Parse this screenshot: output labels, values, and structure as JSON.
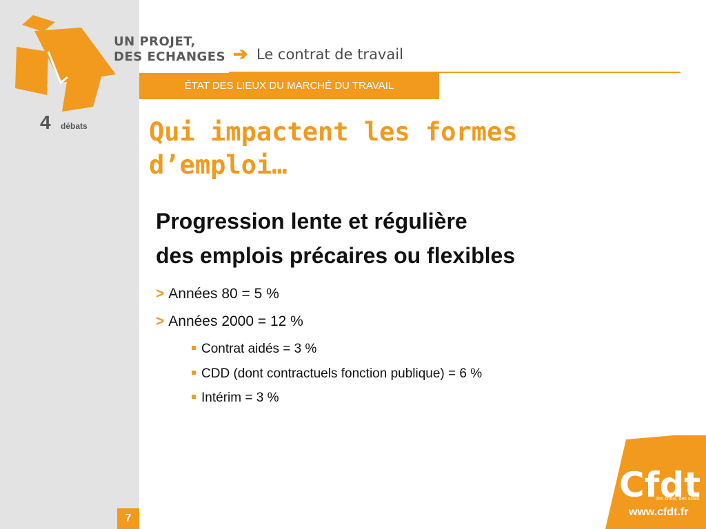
{
  "header": {
    "project_line1": "UN PROJET,",
    "project_line2": "DES ECHANGES",
    "subject": "Le contrat de travail",
    "brand_digit": "4",
    "brand_word": "débats"
  },
  "section_tag": "ÉTAT DES LIEUX DU MARCHÉ DU TRAVAIL",
  "title_line1": "Qui impactent les formes",
  "title_line2": "d’emploi…",
  "headline": {
    "line1": "Progression lente et régulière",
    "line2": "des emplois précaires ou flexibles"
  },
  "bullets": [
    {
      "marker": ">",
      "text": "Années 80 = 5 %"
    },
    {
      "marker": ">",
      "text": "Années 2000 = 12 %"
    }
  ],
  "sub_bullets": [
    {
      "text": "Contrat aidés = 3 %"
    },
    {
      "text": "CDD (dont contractuels fonction publique) = 6 %"
    },
    {
      "text": "Intérim = 3 %"
    }
  ],
  "page_number": "7",
  "footer": {
    "cfdt_mark": "Cfdt",
    "cfdt_tagline": "des choix, des actes",
    "url": "www.cfdt.fr"
  },
  "colors": {
    "accent": "#f29a1d",
    "panel": "#e3e3e3",
    "text_dark": "#111111",
    "text_gray": "#5a5a5a"
  },
  "icons": [
    "arrow-right-icon",
    "cube-logo-icon",
    "square-bullet-icon"
  ]
}
